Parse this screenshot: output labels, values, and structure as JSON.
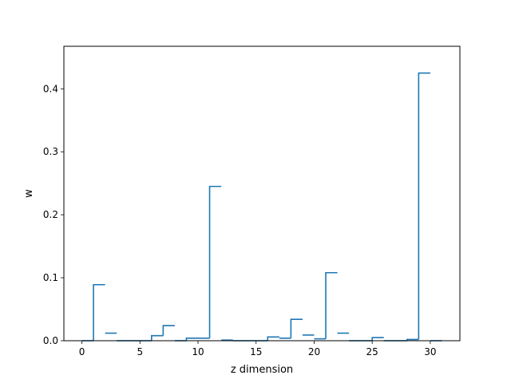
{
  "chart_data": {
    "type": "step",
    "style": "histogram step outline",
    "xlabel": "z dimension",
    "ylabel": "w",
    "xlim": [
      -1.55,
      32.55
    ],
    "ylim": [
      0,
      0.4675
    ],
    "x_ticks": [
      0,
      5,
      10,
      15,
      20,
      25,
      30
    ],
    "y_ticks": [
      0.0,
      0.1,
      0.2,
      0.3,
      0.4
    ],
    "x_tick_labels": [
      "0",
      "5",
      "10",
      "15",
      "20",
      "25",
      "30"
    ],
    "y_tick_labels": [
      "0.0",
      "0.1",
      "0.2",
      "0.3",
      "0.4"
    ],
    "bin_edges_start": 0,
    "bin_width": 1,
    "series": [
      {
        "color": "#1f77b4",
        "values": [
          0.0,
          0.089,
          0.012,
          0.0,
          0.0,
          0.0,
          0.008,
          0.024,
          0.0,
          0.004,
          0.004,
          0.245,
          0.001,
          0.0,
          0.0,
          0.0,
          0.006,
          0.004,
          0.034,
          0.009,
          0.003,
          0.108,
          0.012,
          0.0,
          0.0,
          0.005,
          0.0,
          0.0,
          0.002,
          0.425,
          0.0
        ]
      }
    ],
    "grid": false,
    "legend": null
  }
}
